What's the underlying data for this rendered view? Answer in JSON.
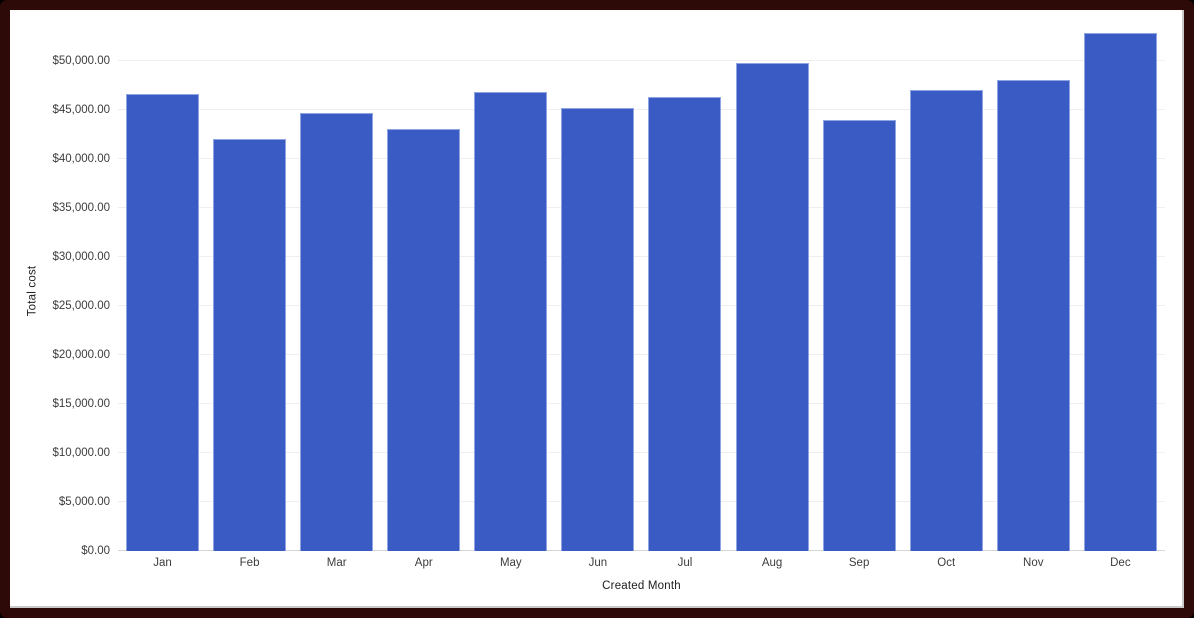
{
  "chart_data": {
    "type": "bar",
    "title": "",
    "categories": [
      "Jan",
      "Feb",
      "Mar",
      "Apr",
      "May",
      "Jun",
      "Jul",
      "Aug",
      "Sep",
      "Oct",
      "Nov",
      "Dec"
    ],
    "series": [
      {
        "name": "Total cost",
        "values": [
          46600,
          42000,
          44700,
          43100,
          46850,
          45200,
          46300,
          49750,
          44000,
          47050,
          48100,
          52900
        ]
      }
    ],
    "xlabel": "Created Month",
    "ylabel": "Total cost",
    "ylim": [
      0,
      50000
    ],
    "ytick_step": 5000,
    "ytick_labels": [
      "$0.00",
      "$5,000.00",
      "$10,000.00",
      "$15,000.00",
      "$20,000.00",
      "$25,000.00",
      "$30,000.00",
      "$35,000.00",
      "$40,000.00",
      "$45,000.00",
      "$50,000.00"
    ],
    "grid": "horizontal",
    "legend": "none",
    "colors": {
      "bar_fill": "#3a5bc4",
      "bar_stroke": "#8fa5e2",
      "gridline": "#efefef",
      "axis_line": "#d6d6d6",
      "tick_text": "#3c3c3c",
      "axis_title_text": "#1c1c1c",
      "frame_border": "#2d0907",
      "chart_background": "#ffffff"
    }
  }
}
